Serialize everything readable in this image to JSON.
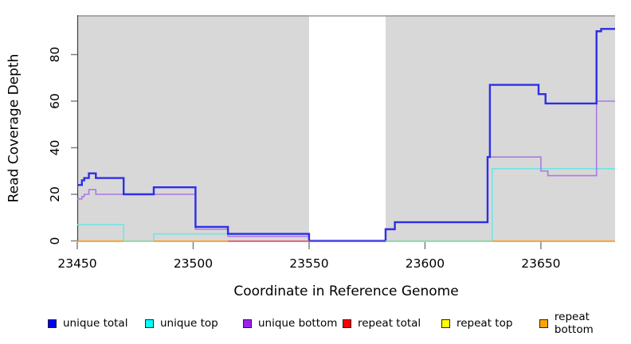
{
  "chart_data": {
    "type": "line",
    "step": true,
    "title": "",
    "xlabel": "Coordinate in Reference Genome",
    "ylabel": "Read Coverage Depth",
    "xlim": [
      23450,
      23682
    ],
    "ylim": [
      0,
      97
    ],
    "xticks": [
      23450,
      23500,
      23550,
      23600,
      23650
    ],
    "yticks": [
      0,
      20,
      40,
      60,
      80
    ],
    "grid": false,
    "legend_position": "bottom",
    "panel_background": "#d8d8d8",
    "panel_top_border_color": "#999999",
    "no_data_gap": {
      "from": 23550,
      "to": 23583,
      "color": "#ffffff"
    },
    "series": [
      {
        "name": "unique top",
        "color": "#72e4e4",
        "line_width": 1.6,
        "steps": [
          [
            23450,
            7
          ],
          [
            23470,
            0
          ],
          [
            23483,
            3
          ],
          [
            23550,
            0
          ],
          [
            23629,
            31
          ],
          [
            23682,
            31
          ]
        ]
      },
      {
        "name": "unique bottom",
        "color": "#ab79e2",
        "line_width": 1.6,
        "steps": [
          [
            23450,
            18
          ],
          [
            23452,
            19
          ],
          [
            23453,
            20
          ],
          [
            23455,
            22
          ],
          [
            23458,
            20
          ],
          [
            23501,
            5
          ],
          [
            23515,
            2
          ],
          [
            23550,
            0
          ],
          [
            23583,
            5
          ],
          [
            23587,
            8
          ],
          [
            23627,
            36
          ],
          [
            23650,
            30
          ],
          [
            23653,
            28
          ],
          [
            23674,
            60
          ],
          [
            23682,
            60
          ]
        ]
      },
      {
        "name": "unique total",
        "color": "#2e2ee6",
        "line_width": 2.4,
        "steps": [
          [
            23450,
            24
          ],
          [
            23452,
            26
          ],
          [
            23453,
            27
          ],
          [
            23455,
            29
          ],
          [
            23458,
            27
          ],
          [
            23470,
            20
          ],
          [
            23483,
            23
          ],
          [
            23501,
            6
          ],
          [
            23515,
            3
          ],
          [
            23550,
            0
          ],
          [
            23583,
            5
          ],
          [
            23587,
            8
          ],
          [
            23627,
            36
          ],
          [
            23628,
            67
          ],
          [
            23649,
            63
          ],
          [
            23652,
            59
          ],
          [
            23674,
            90
          ],
          [
            23676,
            91
          ],
          [
            23682,
            91
          ]
        ]
      }
    ],
    "flat_zero_series": [
      {
        "name": "repeat total",
        "color": "#ff0000",
        "value": 0
      },
      {
        "name": "repeat top",
        "color": "#ffff00",
        "value": 0
      },
      {
        "name": "repeat bottom",
        "color": "#ffa500",
        "value": 0
      }
    ],
    "zero_line_segments": [
      {
        "from": 23450,
        "to": 23470,
        "color": "#ff9f1a"
      },
      {
        "from": 23470,
        "to": 23483,
        "color": "#9fd6a4"
      },
      {
        "from": 23483,
        "to": 23515,
        "color": "#ff9f1a"
      },
      {
        "from": 23515,
        "to": 23550,
        "color": "#e25a6e"
      },
      {
        "from": 23550,
        "to": 23583,
        "color": "#5a52e0"
      },
      {
        "from": 23583,
        "to": 23629,
        "color": "#9ad6a0"
      },
      {
        "from": 23629,
        "to": 23682,
        "color": "#ff9f1a"
      }
    ],
    "axis_style": {
      "tick_color": "#808080",
      "axis_line_color": "#404040",
      "tick_label_color": "#000000",
      "tick_font_px": 15.5
    }
  },
  "legend": {
    "items": [
      {
        "label": "unique total",
        "color": "#0000ff"
      },
      {
        "label": "unique top",
        "color": "#00ffff"
      },
      {
        "label": "unique bottom",
        "color": "#a020f0"
      },
      {
        "label": "repeat total",
        "color": "#ff0000"
      },
      {
        "label": "repeat top",
        "color": "#ffff00"
      },
      {
        "label": "repeat bottom",
        "color": "#ffa500"
      }
    ]
  }
}
